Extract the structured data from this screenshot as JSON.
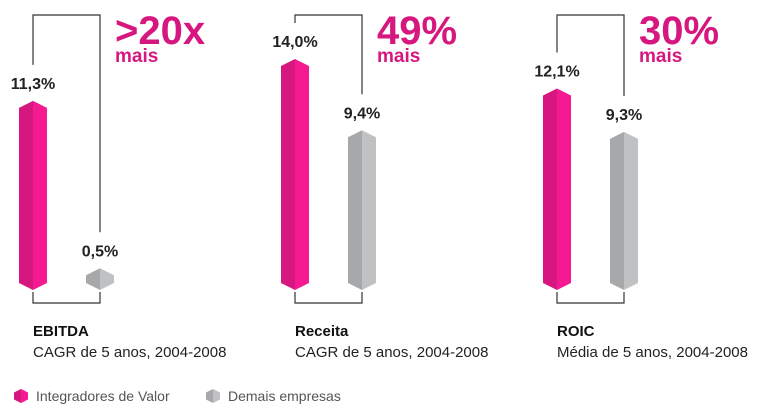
{
  "chart_data": {
    "type": "bar",
    "categories": [
      "EBITDA",
      "Receita",
      "ROIC"
    ],
    "subtitles": [
      "CAGR de 5 anos, 2004-2008",
      "CAGR de 5 anos, 2004-2008",
      "Média de 5 anos, 2004-2008"
    ],
    "series": [
      {
        "name": "Integradores de Valor",
        "color": "#d6177f",
        "values": [
          11.3,
          14.0,
          12.1
        ],
        "value_labels": [
          "11,3%",
          "14,0%",
          "12,1%"
        ]
      },
      {
        "name": "Demais empresas",
        "color": "#a7a8aa",
        "values": [
          0.5,
          9.4,
          9.3
        ],
        "value_labels": [
          "0,5%",
          "9,4%",
          "9,3%"
        ]
      }
    ],
    "annotations": [
      {
        "text": ">20x",
        "subtext": "mais"
      },
      {
        "text": "49%",
        "subtext": "mais"
      },
      {
        "text": "30%",
        "subtext": "mais"
      }
    ]
  }
}
